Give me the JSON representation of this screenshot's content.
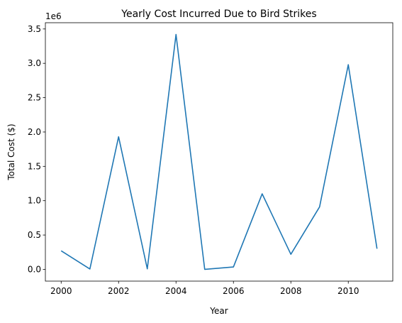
{
  "chart_data": {
    "type": "line",
    "title": "Yearly Cost Incurred Due to Bird Strikes",
    "xlabel": "Year",
    "ylabel": "Total Cost ($)",
    "y_offset_label": "1e6",
    "x": [
      2000,
      2001,
      2002,
      2003,
      2004,
      2005,
      2006,
      2007,
      2008,
      2009,
      2010,
      2011
    ],
    "series": [
      {
        "values": [
          270000,
          5000,
          1930000,
          8000,
          3420000,
          0,
          35000,
          1100000,
          220000,
          910000,
          2980000,
          300000
        ]
      }
    ],
    "xlim": [
      1999.45,
      2011.55
    ],
    "ylim": [
      -171000,
      3591000
    ],
    "x_ticks": [
      2000,
      2002,
      2004,
      2006,
      2008,
      2010
    ],
    "x_tick_labels": [
      "2000",
      "2002",
      "2004",
      "2006",
      "2008",
      "2010"
    ],
    "y_ticks": [
      0,
      500000,
      1000000,
      1500000,
      2000000,
      2500000,
      3000000,
      3500000
    ],
    "y_tick_labels": [
      "0.0",
      "0.5",
      "1.0",
      "1.5",
      "2.0",
      "2.5",
      "3.0",
      "3.5"
    ],
    "grid": false,
    "line_color": "#1f77b4"
  }
}
